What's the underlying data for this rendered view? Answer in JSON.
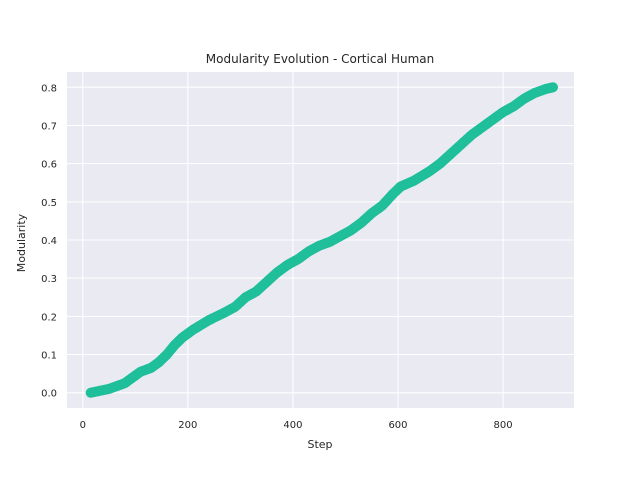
{
  "chart_data": {
    "type": "scatter",
    "title": "Modularity Evolution - Cortical Human",
    "xlabel": "Step",
    "ylabel": "Modularity",
    "xlim": [
      -30,
      935
    ],
    "ylim": [
      -0.04,
      0.84
    ],
    "xticks": [
      0,
      200,
      400,
      600,
      800
    ],
    "yticks": [
      0.0,
      0.1,
      0.2,
      0.3,
      0.4,
      0.5,
      0.6,
      0.7,
      0.8
    ],
    "xtick_labels": [
      "0",
      "200",
      "400",
      "600",
      "800"
    ],
    "ytick_labels": [
      "0.0",
      "0.1",
      "0.2",
      "0.3",
      "0.4",
      "0.5",
      "0.6",
      "0.7",
      "0.8"
    ],
    "grid": true,
    "background": "#eaeaf2",
    "marker_color": "#1fbf9a",
    "anchors": [
      [
        15,
        0.0
      ],
      [
        50,
        0.01
      ],
      [
        80,
        0.025
      ],
      [
        100,
        0.045
      ],
      [
        110,
        0.055
      ],
      [
        130,
        0.065
      ],
      [
        145,
        0.08
      ],
      [
        160,
        0.1
      ],
      [
        175,
        0.125
      ],
      [
        190,
        0.145
      ],
      [
        210,
        0.165
      ],
      [
        240,
        0.19
      ],
      [
        270,
        0.21
      ],
      [
        290,
        0.225
      ],
      [
        310,
        0.25
      ],
      [
        330,
        0.265
      ],
      [
        350,
        0.29
      ],
      [
        370,
        0.315
      ],
      [
        390,
        0.335
      ],
      [
        410,
        0.35
      ],
      [
        430,
        0.37
      ],
      [
        450,
        0.385
      ],
      [
        470,
        0.395
      ],
      [
        490,
        0.41
      ],
      [
        510,
        0.425
      ],
      [
        530,
        0.445
      ],
      [
        550,
        0.47
      ],
      [
        570,
        0.49
      ],
      [
        590,
        0.52
      ],
      [
        605,
        0.54
      ],
      [
        630,
        0.555
      ],
      [
        660,
        0.58
      ],
      [
        680,
        0.6
      ],
      [
        700,
        0.625
      ],
      [
        720,
        0.65
      ],
      [
        740,
        0.675
      ],
      [
        760,
        0.695
      ],
      [
        780,
        0.715
      ],
      [
        800,
        0.735
      ],
      [
        820,
        0.75
      ],
      [
        840,
        0.77
      ],
      [
        860,
        0.785
      ],
      [
        880,
        0.795
      ],
      [
        895,
        0.8
      ]
    ]
  }
}
